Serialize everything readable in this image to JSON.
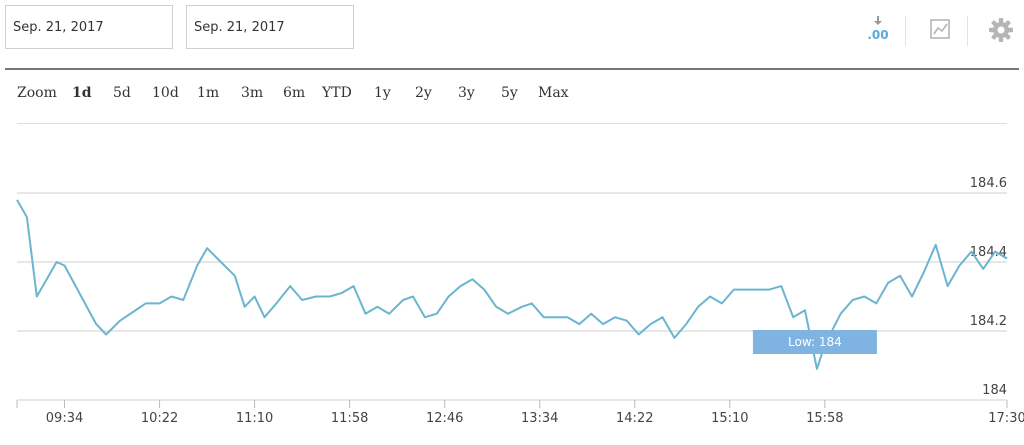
{
  "date_range": {
    "start": "Sep. 21, 2017",
    "end": "Sep. 21, 2017"
  },
  "toolbar": {
    "decimals_label": ".00",
    "icons": [
      "download-decimals-icon",
      "chart-type-icon",
      "gear-icon"
    ]
  },
  "zoom": {
    "label": "Zoom",
    "options": [
      "1d",
      "5d",
      "10d",
      "1m",
      "3m",
      "6m",
      "YTD",
      "1y",
      "2y",
      "3y",
      "5y",
      "Max"
    ],
    "active": "1d"
  },
  "colors": {
    "line": "#6cb5d0",
    "grid": "#cfcfcf",
    "low_badge": "#7fb4e2"
  },
  "chart_data": {
    "type": "line",
    "x_start": "09:10",
    "x_end": "17:30",
    "x_ticks": [
      "09:34",
      "10:22",
      "11:10",
      "11:58",
      "12:46",
      "13:34",
      "14:22",
      "15:10",
      "15:58",
      "17:30"
    ],
    "y_ticks": [
      "184",
      "184.2",
      "184.4",
      "184.6"
    ],
    "ylim": [
      184,
      184.6
    ],
    "grid": true,
    "series": [
      {
        "points": [
          [
            "09:10",
            184.58
          ],
          [
            "09:15",
            184.53
          ],
          [
            "09:20",
            184.3
          ],
          [
            "09:30",
            184.4
          ],
          [
            "09:34",
            184.39
          ],
          [
            "09:50",
            184.22
          ],
          [
            "09:55",
            184.19
          ],
          [
            "10:02",
            184.23
          ],
          [
            "10:15",
            184.28
          ],
          [
            "10:22",
            184.28
          ],
          [
            "10:28",
            184.3
          ],
          [
            "10:34",
            184.29
          ],
          [
            "10:41",
            184.39
          ],
          [
            "10:46",
            184.44
          ],
          [
            "10:53",
            184.4
          ],
          [
            "11:00",
            184.36
          ],
          [
            "11:05",
            184.27
          ],
          [
            "11:10",
            184.3
          ],
          [
            "11:15",
            184.24
          ],
          [
            "11:21",
            184.28
          ],
          [
            "11:28",
            184.33
          ],
          [
            "11:34",
            184.29
          ],
          [
            "11:41",
            184.3
          ],
          [
            "11:48",
            184.3
          ],
          [
            "11:54",
            184.31
          ],
          [
            "12:00",
            184.33
          ],
          [
            "12:06",
            184.25
          ],
          [
            "12:12",
            184.27
          ],
          [
            "12:18",
            184.25
          ],
          [
            "12:25",
            184.29
          ],
          [
            "12:30",
            184.3
          ],
          [
            "12:36",
            184.24
          ],
          [
            "12:42",
            184.25
          ],
          [
            "12:48",
            184.3
          ],
          [
            "12:54",
            184.33
          ],
          [
            "13:00",
            184.35
          ],
          [
            "13:06",
            184.32
          ],
          [
            "13:12",
            184.27
          ],
          [
            "13:18",
            184.25
          ],
          [
            "13:25",
            184.27
          ],
          [
            "13:30",
            184.28
          ],
          [
            "13:36",
            184.24
          ],
          [
            "13:42",
            184.24
          ],
          [
            "13:48",
            184.24
          ],
          [
            "13:54",
            184.22
          ],
          [
            "14:00",
            184.25
          ],
          [
            "14:06",
            184.22
          ],
          [
            "14:12",
            184.24
          ],
          [
            "14:18",
            184.23
          ],
          [
            "14:24",
            184.19
          ],
          [
            "14:30",
            184.22
          ],
          [
            "14:36",
            184.24
          ],
          [
            "14:42",
            184.18
          ],
          [
            "14:48",
            184.22
          ],
          [
            "14:54",
            184.27
          ],
          [
            "15:00",
            184.3
          ],
          [
            "15:06",
            184.28
          ],
          [
            "15:12",
            184.32
          ],
          [
            "15:30",
            184.32
          ],
          [
            "15:36",
            184.33
          ],
          [
            "15:42",
            184.24
          ],
          [
            "15:48",
            184.26
          ],
          [
            "15:54",
            184.09
          ],
          [
            "15:58",
            184.16
          ],
          [
            "16:06",
            184.25
          ],
          [
            "16:12",
            184.29
          ],
          [
            "16:18",
            184.3
          ],
          [
            "16:24",
            184.28
          ],
          [
            "16:30",
            184.34
          ],
          [
            "16:36",
            184.36
          ],
          [
            "16:42",
            184.3
          ],
          [
            "16:48",
            184.37
          ],
          [
            "16:54",
            184.45
          ],
          [
            "17:00",
            184.33
          ],
          [
            "17:06",
            184.39
          ],
          [
            "17:12",
            184.43
          ],
          [
            "17:18",
            184.38
          ],
          [
            "17:24",
            184.43
          ],
          [
            "17:30",
            184.41
          ]
        ]
      }
    ],
    "annotations": [
      {
        "text": "Low: 184",
        "x": "15:54",
        "y": 184.09
      }
    ]
  }
}
